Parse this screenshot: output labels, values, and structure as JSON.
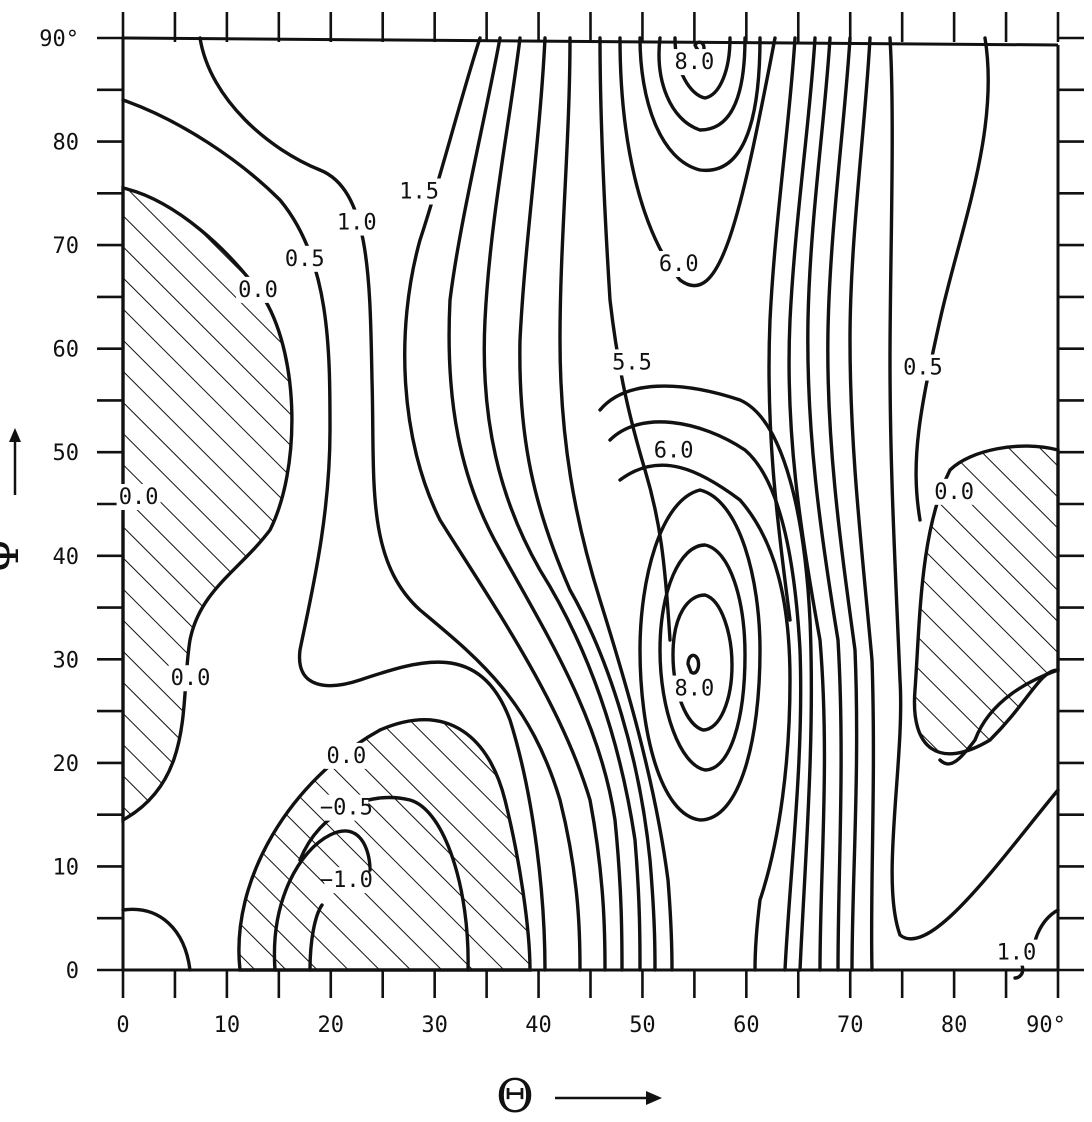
{
  "chart_data": {
    "type": "contour",
    "xlabel": "Θ",
    "ylabel": "Ψ",
    "xlim": [
      0,
      90
    ],
    "ylim": [
      0,
      90
    ],
    "x_tick_labels": [
      "0",
      "10",
      "20",
      "30",
      "40",
      "50",
      "60",
      "70",
      "80",
      "90°"
    ],
    "y_tick_labels": [
      "0",
      "10",
      "20",
      "30",
      "40",
      "50",
      "60",
      "70",
      "80",
      "90°"
    ],
    "x_ticks": [
      0,
      10,
      20,
      30,
      40,
      50,
      60,
      70,
      80,
      90
    ],
    "y_ticks": [
      0,
      10,
      20,
      30,
      40,
      50,
      60,
      70,
      80,
      90
    ],
    "grid": false,
    "legend": "none",
    "hatched_regions": "values below 0.0",
    "contour_labels": [
      {
        "text": "0.0",
        "x": 1.5,
        "y": 45
      },
      {
        "text": "0.0",
        "x": 13,
        "y": 65
      },
      {
        "text": "0.0",
        "x": 6.5,
        "y": 27.5
      },
      {
        "text": "0.5",
        "x": 17.5,
        "y": 68
      },
      {
        "text": "1.0",
        "x": 22.5,
        "y": 71.5
      },
      {
        "text": "1.5",
        "x": 28.5,
        "y": 74.5
      },
      {
        "text": "0.0",
        "x": 21.5,
        "y": 20
      },
      {
        "text": "−0.5",
        "x": 21.5,
        "y": 15
      },
      {
        "text": "−1.0",
        "x": 21.5,
        "y": 8
      },
      {
        "text": "8.0",
        "x": 55,
        "y": 87
      },
      {
        "text": "6.0",
        "x": 53.5,
        "y": 67.5
      },
      {
        "text": "5.5",
        "x": 49,
        "y": 58
      },
      {
        "text": "6.0",
        "x": 53,
        "y": 49.5
      },
      {
        "text": "8.0",
        "x": 55,
        "y": 26.5
      },
      {
        "text": "0.5",
        "x": 77,
        "y": 57.5
      },
      {
        "text": "0.0",
        "x": 80,
        "y": 45.5
      },
      {
        "text": "1.0",
        "x": 86,
        "y": 1
      }
    ]
  }
}
